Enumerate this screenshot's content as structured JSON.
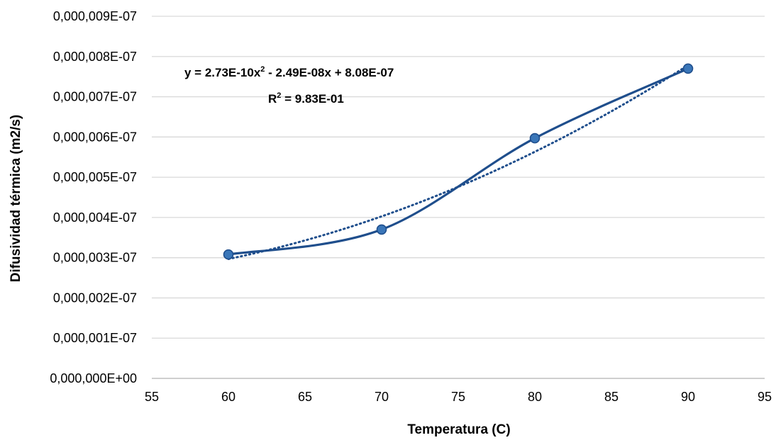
{
  "chart_data": {
    "type": "scatter",
    "title": "",
    "xlabel": "Temperatura (C)",
    "ylabel": "Difusividad térmica (m2/s)",
    "xlim": [
      55,
      95
    ],
    "ylim": [
      0,
      9e-07
    ],
    "x_ticks": [
      55,
      60,
      65,
      70,
      75,
      80,
      85,
      90,
      95
    ],
    "x_tick_labels": [
      "55",
      "60",
      "65",
      "70",
      "75",
      "80",
      "85",
      "90",
      "95"
    ],
    "y_ticks": [
      0,
      1e-07,
      2e-07,
      3e-07,
      4e-07,
      5e-07,
      6e-07,
      7e-07,
      8e-07,
      9e-07
    ],
    "y_tick_labels": [
      "0,000,000E+00",
      "0,000,001E-07",
      "0,000,002E-07",
      "0,000,003E-07",
      "0,000,004E-07",
      "0,000,005E-07",
      "0,000,006E-07",
      "0,000,007E-07",
      "0,000,008E-07",
      "0,000,009E-07"
    ],
    "grid": {
      "horizontal": true,
      "vertical": false
    },
    "series": [
      {
        "x": [
          60,
          70,
          80,
          90
        ],
        "y": [
          3.08e-07,
          3.7e-07,
          5.97e-07,
          7.7e-07
        ],
        "line": "smooth",
        "color": "#1f4e8c",
        "marker_color": "#3a76b8"
      }
    ],
    "trendline": {
      "type": "polynomial-2",
      "coefficients": {
        "a": 2.73e-10,
        "b": -2.49e-08,
        "c": 8.08e-07
      },
      "style": "dotted",
      "color": "#1f4e8c",
      "equation_label_main": "y = 2.73E-10x",
      "equation_label_sup": "2",
      "equation_label_rest": " - 2.49E-08x + 8.08E-07",
      "r2_label_main": "R",
      "r2_label_sup": "2",
      "r2_label_rest": " = 9.83E-01"
    }
  }
}
